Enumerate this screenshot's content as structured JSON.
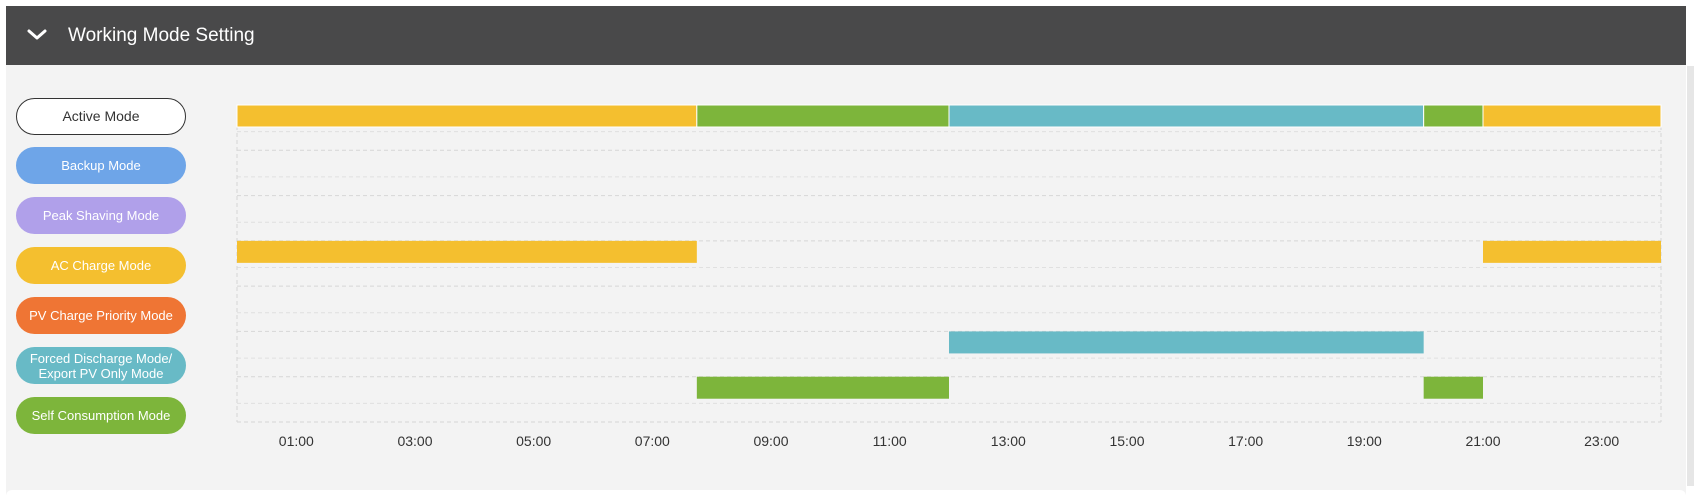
{
  "header": {
    "title": "Working Mode Setting",
    "collapse_icon": "chevron-down-icon"
  },
  "modes": [
    {
      "id": "active",
      "label": "Active Mode",
      "color": "#ffffff"
    },
    {
      "id": "backup",
      "label": "Backup Mode",
      "color": "#6ea5e8"
    },
    {
      "id": "peak",
      "label": "Peak Shaving Mode",
      "color": "#b0a0ea"
    },
    {
      "id": "ac",
      "label": "AC Charge Mode",
      "color": "#f4bf2f"
    },
    {
      "id": "pv",
      "label": "PV Charge Priority Mode",
      "color": "#ef7534"
    },
    {
      "id": "forced",
      "label": "Forced Discharge Mode/\nExport PV Only Mode",
      "color": "#68bac6"
    },
    {
      "id": "self",
      "label": "Self Consumption Mode",
      "color": "#7db53b"
    }
  ],
  "chart_data": {
    "type": "timeline",
    "x_unit": "hours",
    "x_range": [
      0,
      24
    ],
    "x_ticks": [
      "01:00",
      "03:00",
      "05:00",
      "07:00",
      "09:00",
      "11:00",
      "13:00",
      "15:00",
      "17:00",
      "19:00",
      "21:00",
      "23:00"
    ],
    "rows": [
      {
        "mode": "Active Mode",
        "segments": [
          {
            "start": 0,
            "end": 7.75,
            "mode": "AC Charge Mode",
            "color": "#f4bf2f"
          },
          {
            "start": 7.75,
            "end": 12,
            "mode": "Self Consumption Mode",
            "color": "#7db53b"
          },
          {
            "start": 12,
            "end": 20,
            "mode": "Forced Discharge Mode/Export PV Only Mode",
            "color": "#68bac6"
          },
          {
            "start": 20,
            "end": 21,
            "mode": "Self Consumption Mode",
            "color": "#7db53b"
          },
          {
            "start": 21,
            "end": 24,
            "mode": "AC Charge Mode",
            "color": "#f4bf2f"
          }
        ]
      },
      {
        "mode": "Backup Mode",
        "segments": []
      },
      {
        "mode": "Peak Shaving Mode",
        "segments": []
      },
      {
        "mode": "AC Charge Mode",
        "segments": [
          {
            "start": 0,
            "end": 7.75,
            "color": "#f4bf2f"
          },
          {
            "start": 21,
            "end": 24,
            "color": "#f4bf2f"
          }
        ]
      },
      {
        "mode": "PV Charge Priority Mode",
        "segments": []
      },
      {
        "mode": "Forced Discharge Mode/Export PV Only Mode",
        "segments": [
          {
            "start": 12,
            "end": 20,
            "color": "#68bac6"
          }
        ]
      },
      {
        "mode": "Self Consumption Mode",
        "segments": [
          {
            "start": 7.75,
            "end": 12,
            "color": "#7db53b"
          },
          {
            "start": 20,
            "end": 21,
            "color": "#7db53b"
          }
        ]
      }
    ]
  }
}
